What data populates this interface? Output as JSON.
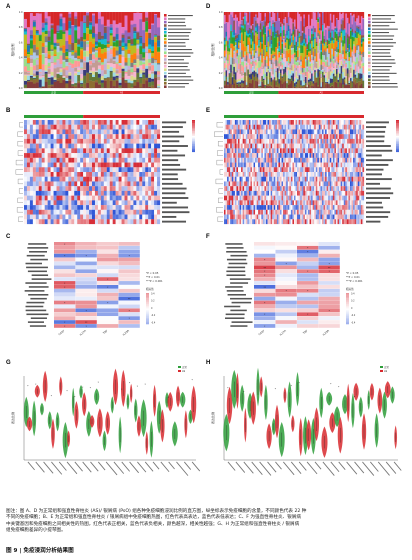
{
  "figure": {
    "panels": [
      "A",
      "B",
      "C",
      "D",
      "E",
      "F",
      "G",
      "H"
    ],
    "caption_lines": [
      "图注：图 A、D 为正常组和强直性脊柱炎 (AS)/ 银屑病 (PsO) 组各种免疫细胞浸润比例的直方图，纵坐标表示免疫细胞的含量，不同颜色代表 22 种",
      "不同的免疫细胞；B、E 为正常组和强直性脊柱炎 / 银屑病组中免疫细胞热图，红色代表高表达，蓝色代表低表达；C、F 为强直性脊柱炎、银屑病",
      "中关键基因和免疫细胞之间相关性的热图，红色代表正相关，蓝色代表负相关，颜色越深，相关性越强；G、H 为正常组和强直性脊柱炎 / 银屑病",
      "组免疫细胞差异的小提琴图。"
    ],
    "title": "图 9 | 免疫浸润分析结果图"
  },
  "groups": {
    "normal_label": "正常",
    "as_label": "AS",
    "normal_color": "#2e9e3a",
    "disease_color": "#d8292e"
  },
  "axis": {
    "stack_ylabel": "相对比例",
    "violin_ylabel": "表达比例"
  },
  "panel_c": {
    "genes": [
      "CCR7",
      "IL17A",
      "TNF",
      "IL23R"
    ],
    "legend": [
      "*P < 0.05",
      "**P < 0.01",
      "***P < 0.001"
    ],
    "scale_title": "相关性",
    "scale_ticks": [
      "0.4",
      "0.2",
      "0",
      "-0.2",
      "-0.4"
    ]
  },
  "panel_f": {
    "genes": [
      "CCR7",
      "IL17A",
      "TNF",
      "IL23R"
    ],
    "legend": [
      "*P < 0.05",
      "**P < 0.01",
      "***P < 0.001"
    ],
    "scale_title": "相关性",
    "scale_ticks": [
      "0.4",
      "0.2",
      "0",
      "-0.2",
      "-0.4"
    ]
  },
  "violin_legend": {
    "normal": "正常",
    "disease": "AS"
  }
}
